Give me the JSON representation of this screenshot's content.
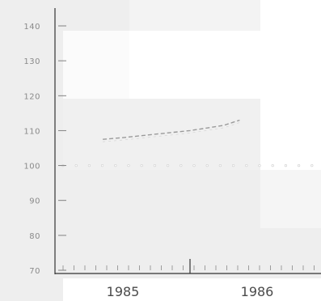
{
  "chart_data": {
    "type": "line",
    "title": "",
    "xlabel": "",
    "ylabel": "",
    "x_range": [
      1984.85,
      1986.5
    ],
    "ylim": [
      68,
      145
    ],
    "y_ticks": [
      70,
      80,
      90,
      100,
      110,
      120,
      130,
      140
    ],
    "y_tick_labels": [
      "70",
      "80",
      "90",
      "100",
      "110",
      "120",
      "130",
      "140"
    ],
    "x_tick_labels": [
      {
        "value": 1985.0,
        "label": "1985"
      },
      {
        "value": 1986.0,
        "label": "1986"
      }
    ],
    "series": [
      {
        "x": [
          1984.85,
          1985.0,
          1985.25,
          1985.5,
          1985.75,
          1985.87
        ],
        "y": [
          107.5,
          108.0,
          109.0,
          110.0,
          111.5,
          113.0
        ],
        "color": "#9a9a9a",
        "style": "dashed"
      }
    ],
    "reference_line": {
      "y": 100,
      "color": "#cfcfcf",
      "style": "dotted"
    },
    "grid": false,
    "legend": "none",
    "colors": {
      "background": "#ffffff",
      "panel": "#eeeeee",
      "axis": "#333333"
    }
  }
}
